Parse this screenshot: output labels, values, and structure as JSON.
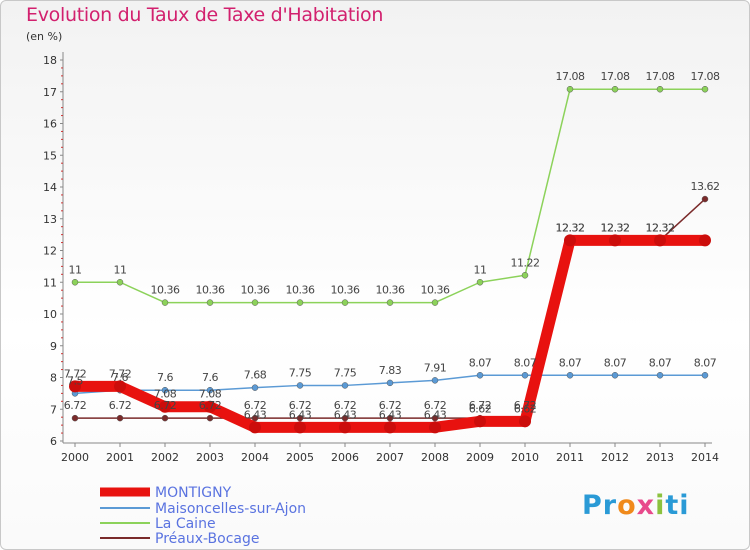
{
  "chart_data": {
    "type": "line",
    "title": "Evolution du Taux de Taxe d'Habitation",
    "ylabel": "(en %)",
    "ylim": [
      6,
      18
    ],
    "yticks": [
      6,
      7,
      8,
      9,
      10,
      11,
      12,
      13,
      14,
      15,
      16,
      17,
      18
    ],
    "x": [
      "2000",
      "2001",
      "2002",
      "2003",
      "2004",
      "2005",
      "2006",
      "2007",
      "2008",
      "2009",
      "2010",
      "2011",
      "2012",
      "2013",
      "2014"
    ],
    "grid": false,
    "legend": "bottom-left",
    "series": [
      {
        "name": "MONTIGNY",
        "color": "#e8120f",
        "values": [
          7.72,
          7.72,
          7.08,
          7.08,
          6.43,
          6.43,
          6.43,
          6.43,
          6.43,
          6.62,
          6.62,
          12.32,
          12.32,
          12.32,
          12.32
        ],
        "labels": [
          "7.72",
          "7.72",
          "7.08",
          "7.08",
          "6.43",
          "6.43",
          "6.43",
          "6.43",
          "6.43",
          "6.62",
          "6.62",
          "12.32",
          "12.32",
          "12.32",
          ""
        ]
      },
      {
        "name": "Maisoncelles-sur-Ajon",
        "color": "#5b9ad5",
        "values": [
          7.5,
          7.6,
          7.6,
          7.6,
          7.68,
          7.75,
          7.75,
          7.83,
          7.91,
          8.07,
          8.07,
          8.07,
          8.07,
          8.07,
          8.07
        ],
        "labels": [
          "7.5",
          "7.6",
          "7.6",
          "7.6",
          "7.68",
          "7.75",
          "7.75",
          "7.83",
          "7.91",
          "8.07",
          "8.07",
          "8.07",
          "8.07",
          "8.07",
          "8.07"
        ]
      },
      {
        "name": "La Caine",
        "color": "#8cd25a",
        "values": [
          11,
          11,
          10.36,
          10.36,
          10.36,
          10.36,
          10.36,
          10.36,
          10.36,
          11,
          11.22,
          17.08,
          17.08,
          17.08,
          17.08
        ],
        "labels": [
          "11",
          "11",
          "10.36",
          "10.36",
          "10.36",
          "10.36",
          "10.36",
          "10.36",
          "10.36",
          "11",
          "11.22",
          "17.08",
          "17.08",
          "17.08",
          "17.08"
        ]
      },
      {
        "name": "Préaux-Bocage",
        "color": "#7a2a2a",
        "values": [
          6.72,
          6.72,
          6.72,
          6.72,
          6.72,
          6.72,
          6.72,
          6.72,
          6.72,
          6.72,
          6.72,
          12.32,
          12.32,
          12.32,
          13.62
        ],
        "labels": [
          "6.72",
          "6.72",
          "6.72",
          "6.72",
          "6.72",
          "6.72",
          "6.72",
          "6.72",
          "6.72",
          "6.72",
          "6.72",
          "12.32",
          "12.32",
          "12.32",
          "13.62"
        ]
      }
    ]
  },
  "logo": {
    "text_1": "Pr",
    "text_2": "o",
    "text_3": "x",
    "text_4": "i",
    "text_5": "ti"
  }
}
